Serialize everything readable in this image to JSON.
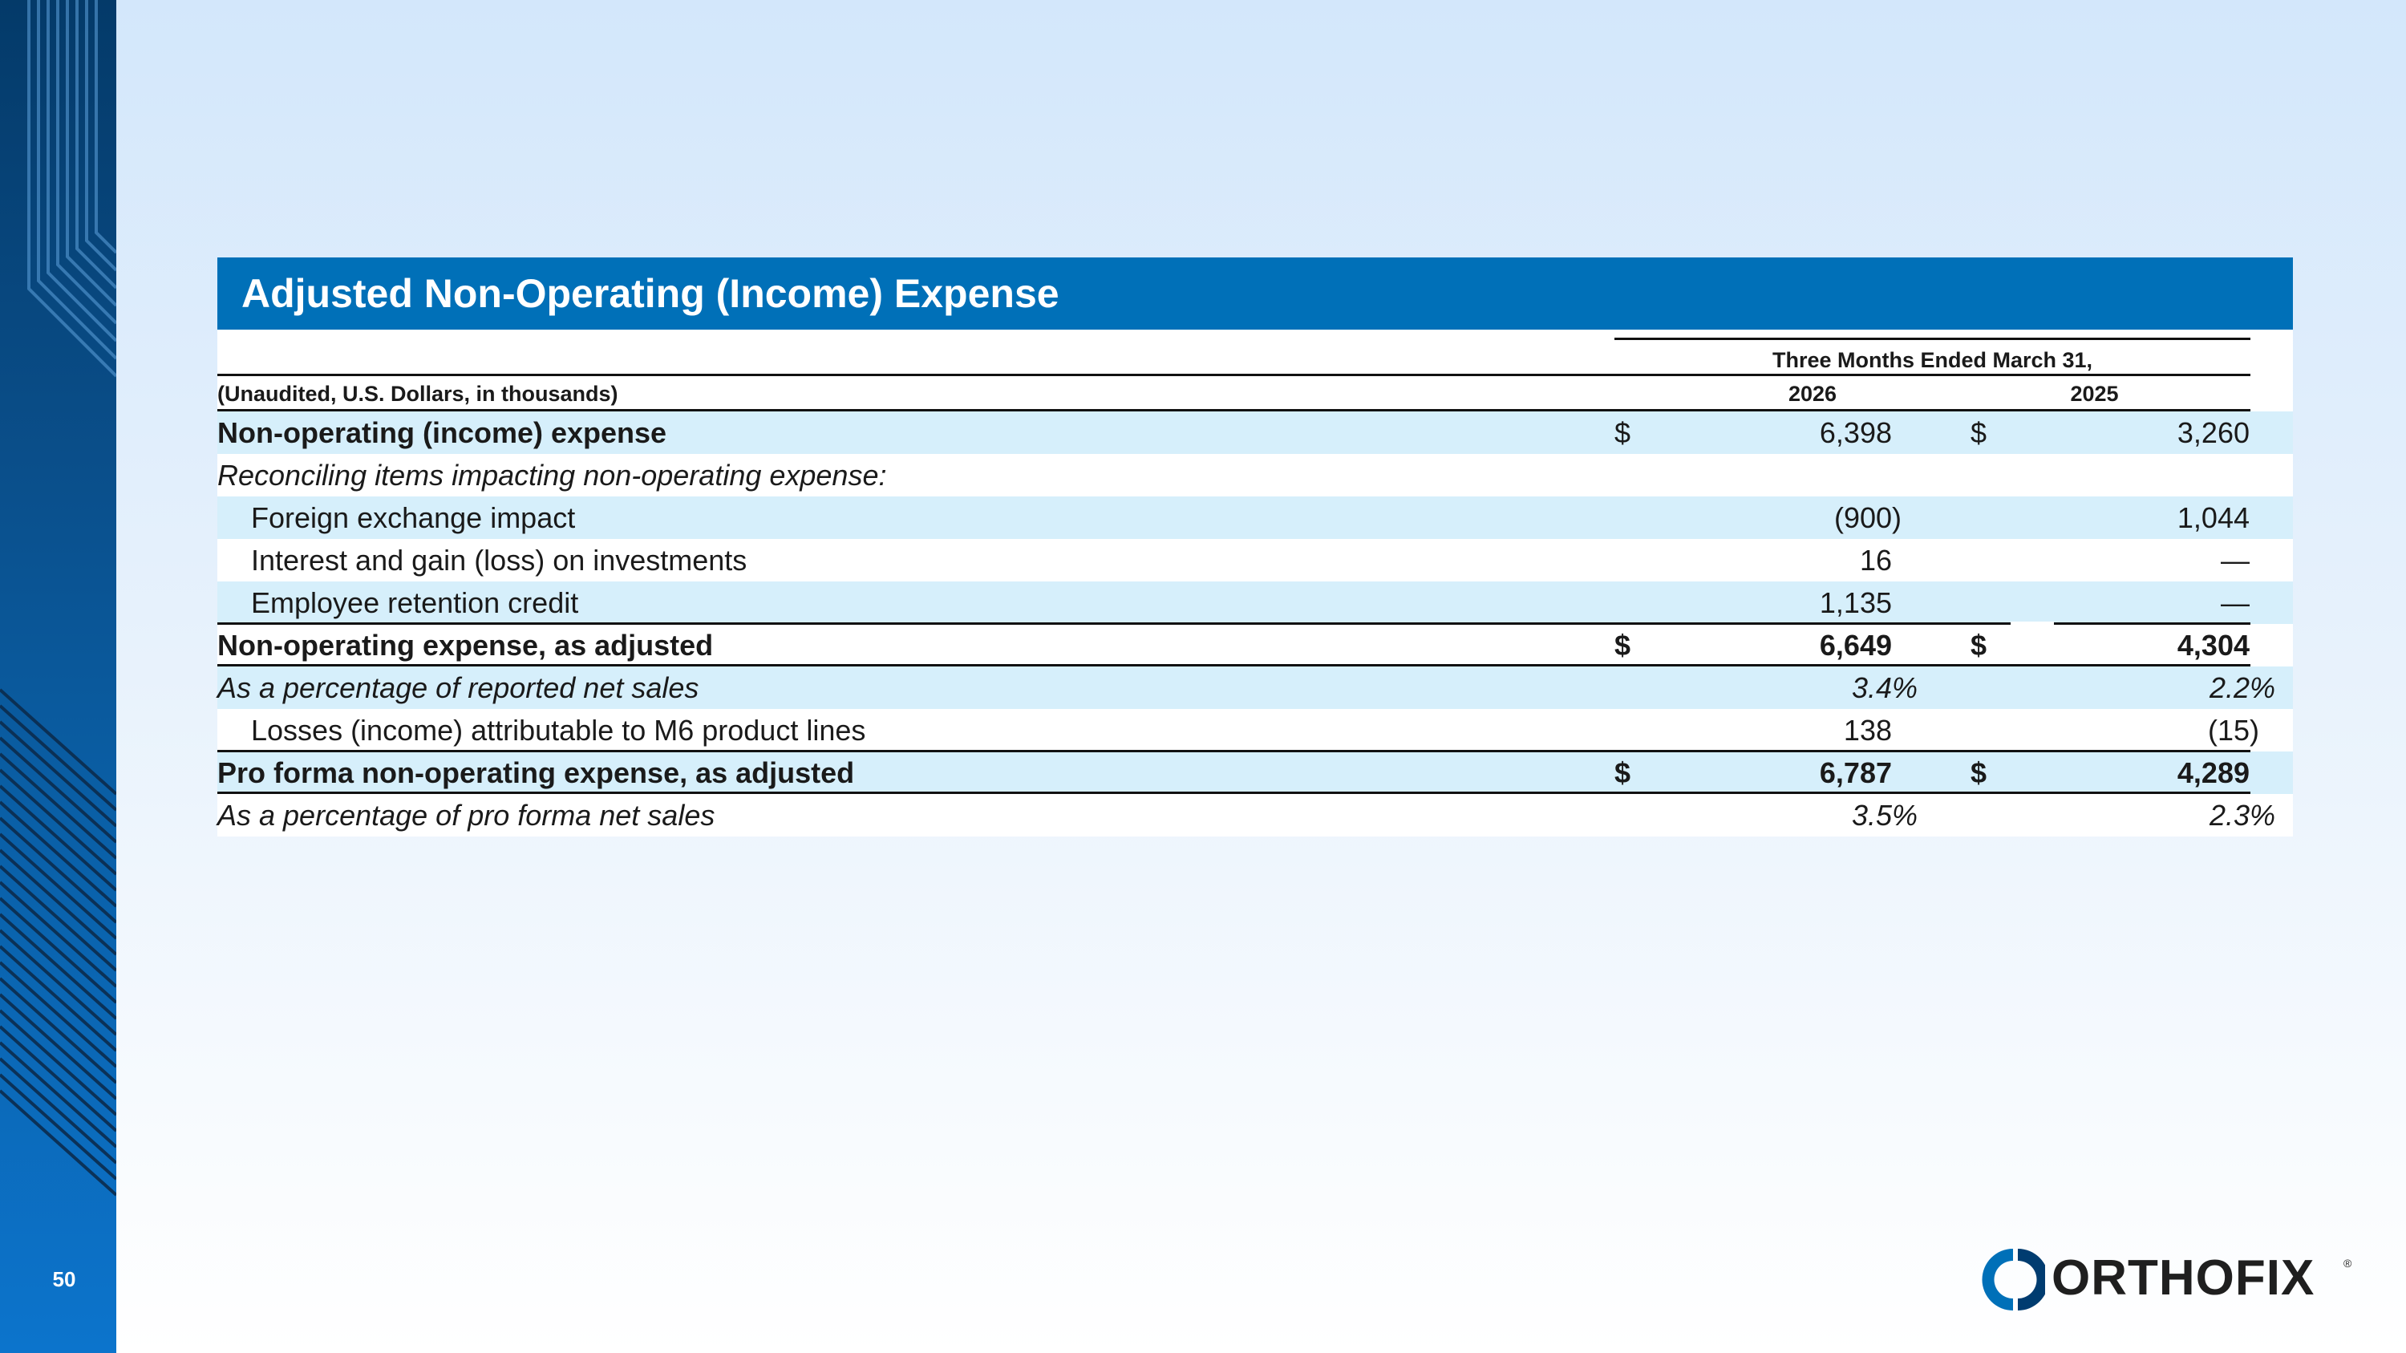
{
  "slide": {
    "page_number": "50",
    "logo_text": "ORTHOFIX",
    "logo_mark": "®"
  },
  "table": {
    "title": "Adjusted Non-Operating (Income) Expense",
    "period_header": "Three Months Ended March 31,",
    "unit_label": "(Unaudited, U.S. Dollars, in thousands)",
    "years": [
      "2026",
      "2025"
    ],
    "rows": [
      {
        "label": "Non-operating (income) expense",
        "dollar1": "$",
        "v1": "6,398",
        "dollar2": "$",
        "v2": "3,260"
      },
      {
        "label": "Reconciling items impacting non-operating expense:"
      },
      {
        "label": "Foreign exchange impact",
        "v1": "(900)",
        "v2": "1,044"
      },
      {
        "label": "Interest and gain (loss) on investments",
        "v1": "16",
        "v2": "—"
      },
      {
        "label": "Employee retention credit",
        "v1": "1,135",
        "v2": "—"
      },
      {
        "label": "Non-operating expense, as adjusted",
        "dollar1": "$",
        "v1": "6,649",
        "dollar2": "$",
        "v2": "4,304"
      },
      {
        "label": "As a percentage of reported net sales",
        "v1": "3.4%",
        "v2": "2.2%"
      },
      {
        "label": "Losses (income) attributable to M6 product lines",
        "v1": "138",
        "v2": "(15)"
      },
      {
        "label": "Pro forma non-operating expense, as adjusted",
        "dollar1": "$",
        "v1": "6,787",
        "dollar2": "$",
        "v2": "4,289"
      },
      {
        "label": "As a percentage of pro forma net sales",
        "v1": "3.5%",
        "v2": "2.3%"
      }
    ]
  }
}
